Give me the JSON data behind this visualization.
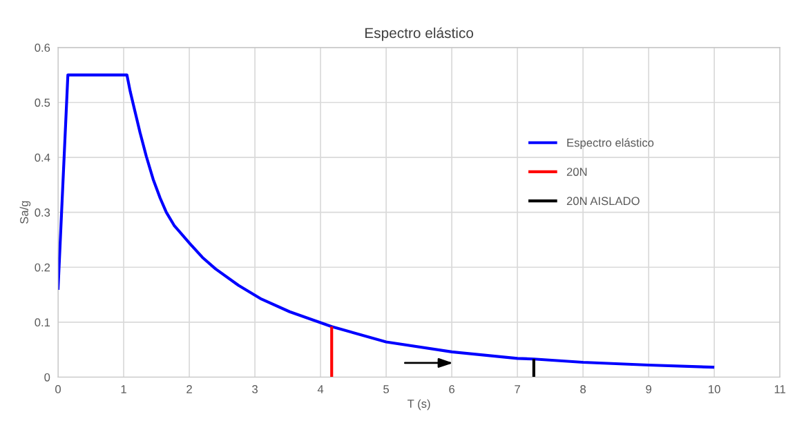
{
  "chart_data": {
    "type": "line",
    "title": "Espectro elástico",
    "xlabel": "T (s)",
    "ylabel": "Sa/g",
    "series": [
      {
        "name": "Espectro elástico",
        "color": "#0000ff",
        "x": [
          0,
          0.15,
          1.05,
          1.1,
          1.17,
          1.25,
          1.345,
          1.45,
          1.556,
          1.65,
          1.77,
          2.01,
          2.2,
          2.4,
          2.75,
          3.1,
          3.53,
          4.17,
          5.0,
          6.0,
          7.0,
          7.25,
          8.0,
          9.0,
          10.0
        ],
        "values": [
          0.159,
          0.55,
          0.55,
          0.52,
          0.485,
          0.445,
          0.402,
          0.36,
          0.326,
          0.3,
          0.276,
          0.243,
          0.218,
          0.197,
          0.167,
          0.142,
          0.119,
          0.092,
          0.064,
          0.046,
          0.034,
          0.033,
          0.027,
          0.022,
          0.018
        ]
      },
      {
        "name": "20N",
        "color": "#ff0000",
        "x": [
          4.17,
          4.17
        ],
        "values": [
          0,
          0.092
        ]
      },
      {
        "name": "20N AISLADO",
        "color": "#000000",
        "x": [
          7.25,
          7.25
        ],
        "values": [
          0,
          0.033
        ]
      }
    ],
    "xlim": [
      0,
      11
    ],
    "xticks": [
      0,
      1,
      2,
      3,
      4,
      5,
      6,
      7,
      8,
      9,
      10,
      11
    ],
    "ylim": [
      0,
      0.6
    ],
    "yticks": [
      0,
      0.1,
      0.2,
      0.3,
      0.4,
      0.5,
      0.6
    ],
    "grid": true,
    "legend": "right",
    "marker": "none",
    "line_style": "solid"
  }
}
